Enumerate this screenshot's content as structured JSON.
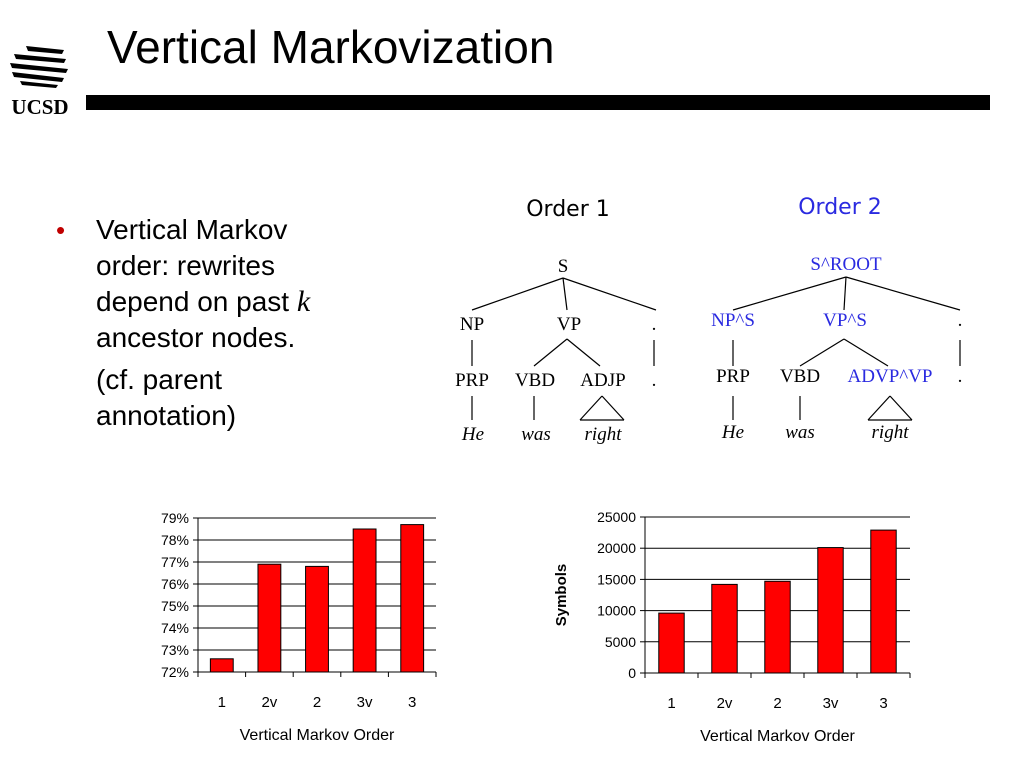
{
  "slide": {
    "title": "Vertical Markovization",
    "logo_text": "UCSD",
    "bullet": {
      "line1": "Vertical Markov",
      "line2": "order: rewrites",
      "line3a": "depend on past ",
      "line3k": "k",
      "line4": "ancestor nodes.",
      "sub1": "(cf. parent",
      "sub2": "annotation)"
    },
    "colors": {
      "accent_blue": "#2a2ae0",
      "bar_red": "#ff0000",
      "bullet_red": "#c00000"
    }
  },
  "trees": {
    "order1": {
      "heading": "Order 1",
      "root": "S",
      "np": "NP",
      "vp": "VP",
      "punct": ".",
      "prp": "PRP",
      "vbd": "VBD",
      "adjp": "ADJP",
      "punct2": ".",
      "he": "He",
      "was": "was",
      "right": "right"
    },
    "order2": {
      "heading": "Order 2",
      "root": "S^ROOT",
      "np": "NP^S",
      "vp": "VP^S",
      "punct": ".",
      "prp": "PRP",
      "vbd": "VBD",
      "advp": "ADVP^VP",
      "punct2": ".",
      "he": "He",
      "was": "was",
      "right": "right"
    }
  },
  "chart_data": [
    {
      "type": "bar",
      "categories": [
        "1",
        "2v",
        "2",
        "3v",
        "3"
      ],
      "values": [
        72.6,
        76.9,
        76.8,
        78.5,
        78.7
      ],
      "ytick_labels": [
        "72%",
        "73%",
        "74%",
        "75%",
        "76%",
        "77%",
        "78%",
        "79%"
      ],
      "ylim": [
        72,
        79
      ],
      "xlabel": "Vertical Markov Order",
      "ylabel": "",
      "grid": true
    },
    {
      "type": "bar",
      "categories": [
        "1",
        "2v",
        "2",
        "3v",
        "3"
      ],
      "values": [
        9600,
        14200,
        14700,
        20100,
        22900
      ],
      "ytick_labels": [
        "0",
        "5000",
        "10000",
        "15000",
        "20000",
        "25000"
      ],
      "ylim": [
        0,
        25000
      ],
      "xlabel": "Vertical Markov Order",
      "ylabel": "Symbols",
      "grid": true
    }
  ]
}
